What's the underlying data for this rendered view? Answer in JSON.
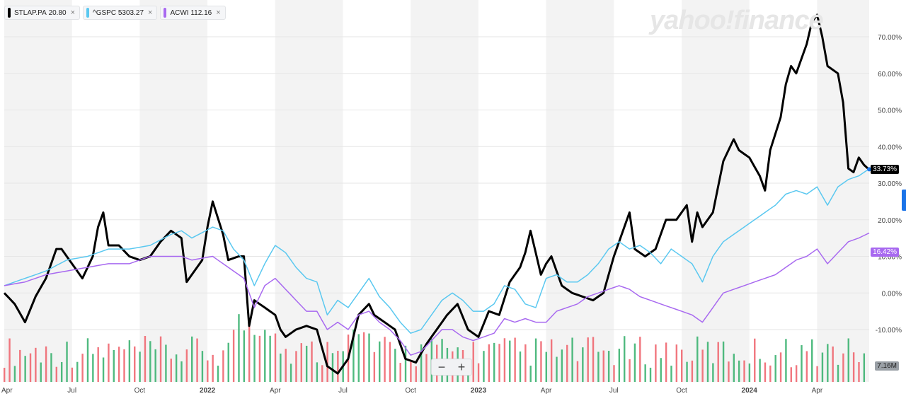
{
  "legend": [
    {
      "symbol": "STLAP.PA",
      "value": "20.80",
      "color": "#000000"
    },
    {
      "symbol": "^GSPC",
      "value": "5303.27",
      "color": "#5ac8f0"
    },
    {
      "symbol": "ACWI",
      "value": "112.16",
      "color": "#a869f0"
    }
  ],
  "legend_close": "×",
  "watermark": "yahoo!finance",
  "zoom": {
    "minus": "−",
    "plus": "+"
  },
  "badges": {
    "stla": "33.73%",
    "acwi": "16.42%",
    "volume": "7.16M"
  },
  "chart_data": {
    "type": "line",
    "y_unit": "%",
    "y_ticks": [
      "70.00%",
      "60.00%",
      "50.00%",
      "40.00%",
      "30.00%",
      "20.00%",
      "10.00%",
      "0.00%",
      "-10.00%"
    ],
    "y_range": [
      -12,
      76
    ],
    "x_tick_labels": [
      "Apr",
      "Jul",
      "Oct",
      "2022",
      "Apr",
      "Jul",
      "Oct",
      "2023",
      "Apr",
      "Jul",
      "Oct",
      "2024",
      "Apr"
    ],
    "x_tick_idx": [
      0,
      13,
      26,
      39,
      52,
      65,
      78,
      91,
      104,
      117,
      130,
      143,
      156
    ],
    "n_points": 166,
    "series": [
      {
        "name": "STLAP.PA",
        "color": "#000000",
        "width": 3,
        "anchors": [
          [
            0,
            0
          ],
          [
            2,
            -3
          ],
          [
            4,
            -8
          ],
          [
            6,
            -1
          ],
          [
            8,
            4
          ],
          [
            10,
            12
          ],
          [
            11,
            12
          ],
          [
            13,
            8
          ],
          [
            15,
            4
          ],
          [
            17,
            10
          ],
          [
            18,
            18
          ],
          [
            19,
            22
          ],
          [
            20,
            13
          ],
          [
            22,
            13
          ],
          [
            24,
            10
          ],
          [
            26,
            9
          ],
          [
            28,
            10
          ],
          [
            30,
            14
          ],
          [
            32,
            17
          ],
          [
            34,
            15
          ],
          [
            35,
            3
          ],
          [
            36,
            5
          ],
          [
            38,
            9
          ],
          [
            39,
            18
          ],
          [
            40,
            25
          ],
          [
            42,
            16
          ],
          [
            43,
            9
          ],
          [
            45,
            10
          ],
          [
            46,
            10
          ],
          [
            47,
            -9
          ],
          [
            48,
            -2
          ],
          [
            50,
            -4
          ],
          [
            52,
            -6
          ],
          [
            53,
            -10
          ],
          [
            54,
            -12
          ],
          [
            56,
            -10
          ],
          [
            58,
            -9
          ],
          [
            60,
            -10
          ],
          [
            61,
            -15
          ],
          [
            62,
            -20
          ],
          [
            64,
            -22
          ],
          [
            66,
            -18
          ],
          [
            68,
            -6
          ],
          [
            70,
            -3
          ],
          [
            71,
            -6
          ],
          [
            73,
            -8
          ],
          [
            75,
            -10
          ],
          [
            77,
            -18
          ],
          [
            79,
            -19
          ],
          [
            81,
            -14
          ],
          [
            83,
            -10
          ],
          [
            85,
            -6
          ],
          [
            87,
            -3
          ],
          [
            89,
            -10
          ],
          [
            91,
            -12
          ],
          [
            93,
            -5
          ],
          [
            95,
            -6
          ],
          [
            97,
            3
          ],
          [
            99,
            7
          ],
          [
            100,
            11
          ],
          [
            101,
            17
          ],
          [
            103,
            5
          ],
          [
            104,
            8
          ],
          [
            105,
            10
          ],
          [
            107,
            2
          ],
          [
            109,
            0
          ],
          [
            111,
            -1
          ],
          [
            113,
            -2
          ],
          [
            115,
            0
          ],
          [
            117,
            10
          ],
          [
            119,
            18
          ],
          [
            120,
            22
          ],
          [
            121,
            12
          ],
          [
            123,
            10
          ],
          [
            125,
            12
          ],
          [
            127,
            20
          ],
          [
            129,
            20
          ],
          [
            131,
            24
          ],
          [
            132,
            14
          ],
          [
            133,
            22
          ],
          [
            134,
            18
          ],
          [
            136,
            22
          ],
          [
            138,
            36
          ],
          [
            140,
            42
          ],
          [
            141,
            39
          ],
          [
            143,
            37
          ],
          [
            145,
            32
          ],
          [
            146,
            28
          ],
          [
            147,
            39
          ],
          [
            149,
            48
          ],
          [
            150,
            57
          ],
          [
            151,
            62
          ],
          [
            152,
            60
          ],
          [
            154,
            68
          ],
          [
            155,
            74
          ],
          [
            156,
            76
          ],
          [
            157,
            70
          ],
          [
            158,
            62
          ],
          [
            160,
            60
          ],
          [
            161,
            52
          ],
          [
            162,
            34
          ],
          [
            163,
            33
          ],
          [
            164,
            37
          ],
          [
            165,
            35
          ],
          [
            166,
            33.7
          ]
        ]
      },
      {
        "name": "^GSPC",
        "color": "#5ac8f0",
        "width": 1.5,
        "anchors": [
          [
            0,
            2
          ],
          [
            4,
            4
          ],
          [
            8,
            6
          ],
          [
            12,
            9
          ],
          [
            16,
            10
          ],
          [
            20,
            12
          ],
          [
            24,
            12
          ],
          [
            28,
            13
          ],
          [
            32,
            16
          ],
          [
            34,
            17
          ],
          [
            36,
            15
          ],
          [
            40,
            18
          ],
          [
            42,
            17
          ],
          [
            44,
            12
          ],
          [
            46,
            9
          ],
          [
            48,
            2
          ],
          [
            50,
            8
          ],
          [
            52,
            13
          ],
          [
            54,
            11
          ],
          [
            56,
            7
          ],
          [
            58,
            4
          ],
          [
            60,
            3
          ],
          [
            62,
            -6
          ],
          [
            64,
            -2
          ],
          [
            66,
            -4
          ],
          [
            68,
            0
          ],
          [
            70,
            4
          ],
          [
            72,
            -1
          ],
          [
            74,
            -4
          ],
          [
            76,
            -8
          ],
          [
            78,
            -11
          ],
          [
            80,
            -10
          ],
          [
            82,
            -6
          ],
          [
            84,
            -2
          ],
          [
            86,
            0
          ],
          [
            88,
            -2
          ],
          [
            90,
            -5
          ],
          [
            92,
            -5
          ],
          [
            94,
            -3
          ],
          [
            96,
            2
          ],
          [
            98,
            1
          ],
          [
            100,
            -3
          ],
          [
            102,
            -4
          ],
          [
            104,
            4
          ],
          [
            106,
            5
          ],
          [
            108,
            3
          ],
          [
            110,
            3
          ],
          [
            112,
            5
          ],
          [
            114,
            8
          ],
          [
            116,
            12
          ],
          [
            118,
            14
          ],
          [
            120,
            12
          ],
          [
            122,
            13
          ],
          [
            124,
            11
          ],
          [
            126,
            8
          ],
          [
            128,
            12
          ],
          [
            130,
            10
          ],
          [
            132,
            8
          ],
          [
            134,
            3
          ],
          [
            136,
            10
          ],
          [
            138,
            14
          ],
          [
            140,
            16
          ],
          [
            142,
            18
          ],
          [
            144,
            20
          ],
          [
            146,
            22
          ],
          [
            148,
            24
          ],
          [
            150,
            27
          ],
          [
            152,
            28
          ],
          [
            154,
            27
          ],
          [
            155,
            28
          ],
          [
            156,
            29
          ],
          [
            158,
            24
          ],
          [
            160,
            29
          ],
          [
            162,
            31
          ],
          [
            164,
            32
          ],
          [
            166,
            33.9
          ]
        ]
      },
      {
        "name": "ACWI",
        "color": "#a869f0",
        "width": 1.5,
        "anchors": [
          [
            0,
            2
          ],
          [
            4,
            3
          ],
          [
            8,
            5
          ],
          [
            12,
            6
          ],
          [
            16,
            7
          ],
          [
            20,
            8
          ],
          [
            24,
            8
          ],
          [
            28,
            10
          ],
          [
            32,
            10
          ],
          [
            34,
            10
          ],
          [
            36,
            9
          ],
          [
            40,
            10
          ],
          [
            42,
            8
          ],
          [
            44,
            6
          ],
          [
            46,
            4
          ],
          [
            48,
            -4
          ],
          [
            50,
            2
          ],
          [
            52,
            4
          ],
          [
            54,
            1
          ],
          [
            56,
            -2
          ],
          [
            58,
            -5
          ],
          [
            60,
            -5
          ],
          [
            62,
            -10
          ],
          [
            64,
            -8
          ],
          [
            66,
            -10
          ],
          [
            68,
            -6
          ],
          [
            70,
            -5
          ],
          [
            72,
            -8
          ],
          [
            74,
            -10
          ],
          [
            76,
            -13
          ],
          [
            78,
            -17
          ],
          [
            80,
            -16
          ],
          [
            82,
            -13
          ],
          [
            84,
            -10
          ],
          [
            86,
            -10
          ],
          [
            88,
            -12
          ],
          [
            90,
            -13
          ],
          [
            92,
            -12
          ],
          [
            94,
            -11
          ],
          [
            96,
            -7
          ],
          [
            98,
            -8
          ],
          [
            100,
            -7
          ],
          [
            102,
            -8
          ],
          [
            104,
            -8
          ],
          [
            106,
            -5
          ],
          [
            108,
            -4
          ],
          [
            110,
            -3
          ],
          [
            112,
            -1
          ],
          [
            114,
            0
          ],
          [
            116,
            1
          ],
          [
            118,
            2
          ],
          [
            120,
            1
          ],
          [
            122,
            -1
          ],
          [
            124,
            -2
          ],
          [
            126,
            -3
          ],
          [
            128,
            -4
          ],
          [
            130,
            -5
          ],
          [
            132,
            -6
          ],
          [
            134,
            -8
          ],
          [
            136,
            -4
          ],
          [
            138,
            0
          ],
          [
            140,
            1
          ],
          [
            142,
            2
          ],
          [
            144,
            3
          ],
          [
            146,
            4
          ],
          [
            148,
            5
          ],
          [
            150,
            7
          ],
          [
            152,
            9
          ],
          [
            154,
            10
          ],
          [
            156,
            12
          ],
          [
            158,
            8
          ],
          [
            160,
            11
          ],
          [
            162,
            14
          ],
          [
            164,
            15
          ],
          [
            166,
            16.4
          ]
        ]
      }
    ]
  }
}
